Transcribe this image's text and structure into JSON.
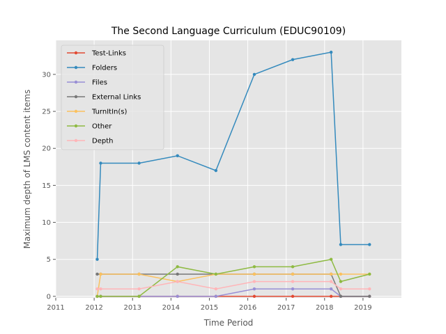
{
  "chart_data": {
    "type": "line",
    "title": "The Second Language Curriculum (EDUC90109)",
    "xlabel": "Time Period",
    "ylabel": "Maximum depth of LMS content items",
    "xlim": [
      2011.0,
      2020.0
    ],
    "ylim": [
      -0.2,
      34.6
    ],
    "xticks": [
      2011,
      2012,
      2013,
      2014,
      2015,
      2016,
      2017,
      2018,
      2019
    ],
    "yticks": [
      0,
      5,
      10,
      15,
      20,
      25,
      30
    ],
    "grid": true,
    "legend_position": "upper-left",
    "x": [
      2012.08,
      2012.17,
      2013.17,
      2014.17,
      2015.17,
      2016.17,
      2017.17,
      2018.17,
      2018.42,
      2019.17
    ],
    "series": [
      {
        "name": "Test-Links",
        "color": "#E24A33",
        "values": [
          0,
          0,
          0,
          0,
          0,
          0,
          0,
          0,
          0,
          0
        ]
      },
      {
        "name": "Folders",
        "color": "#348ABD",
        "values": [
          5,
          18,
          18,
          19,
          17,
          30,
          32,
          33,
          7,
          7
        ]
      },
      {
        "name": "Files",
        "color": "#988ED5",
        "values": [
          0,
          0,
          0,
          0,
          0,
          1,
          1,
          1,
          0,
          0
        ]
      },
      {
        "name": "External Links",
        "color": "#777777",
        "values": [
          3,
          3,
          3,
          3,
          3,
          3,
          3,
          3,
          0,
          0
        ]
      },
      {
        "name": "TurnItIn(s)",
        "color": "#FBC15E",
        "values": [
          0,
          3,
          3,
          2,
          3,
          3,
          3,
          3,
          3,
          3
        ]
      },
      {
        "name": "Other",
        "color": "#8EBA42",
        "values": [
          0,
          0,
          0,
          4,
          3,
          4,
          4,
          5,
          2,
          3
        ]
      },
      {
        "name": "Depth",
        "color": "#FFB5B8",
        "values": [
          1,
          1,
          1,
          2,
          1,
          2,
          2,
          2,
          1,
          1
        ]
      }
    ]
  }
}
